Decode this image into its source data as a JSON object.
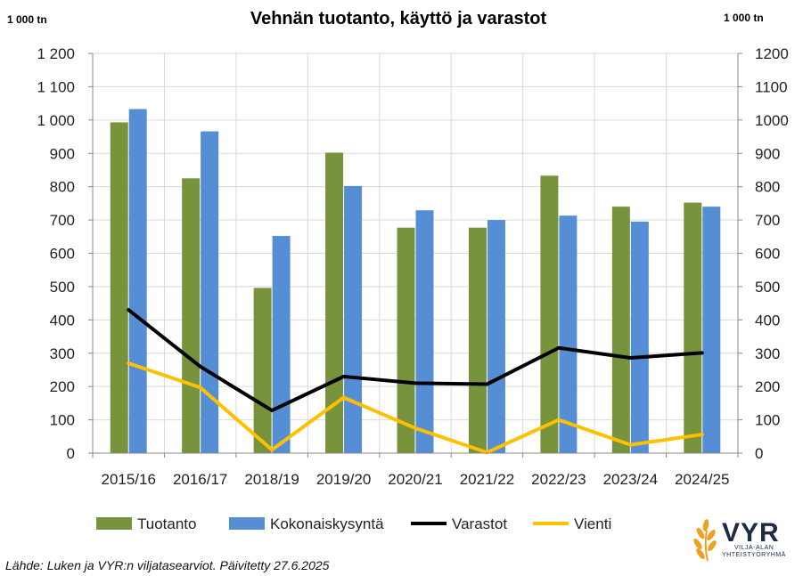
{
  "chart_data": {
    "type": "bar",
    "title": "Vehnän tuotanto, käyttö ja varastot",
    "y_unit_left": "1 000 tn",
    "y_unit_right": "1 000 tn",
    "categories": [
      "2015/16",
      "2016/17",
      "2018/19",
      "2019/20",
      "2020/21",
      "2021/22",
      "2022/23",
      "2023/24",
      "2024/25"
    ],
    "ylim": [
      0,
      1200
    ],
    "yticks_left": [
      "0",
      "100",
      "200",
      "300",
      "400",
      "500",
      "600",
      "700",
      "800",
      "900",
      "1 000",
      "1 100",
      "1 200"
    ],
    "yticks_right": [
      "0",
      "100",
      "200",
      "300",
      "400",
      "500",
      "600",
      "700",
      "800",
      "900",
      "1000",
      "1100",
      "1200"
    ],
    "grid": true,
    "legend_position": "bottom",
    "series": [
      {
        "name": "Tuotanto",
        "kind": "bar",
        "color": "#77933c",
        "values": [
          993,
          825,
          496,
          902,
          677,
          677,
          833,
          740,
          752
        ]
      },
      {
        "name": "Kokonaiskysyntä",
        "kind": "bar",
        "color": "#558ed5",
        "values": [
          1033,
          966,
          652,
          802,
          729,
          700,
          713,
          695,
          740
        ]
      },
      {
        "name": "Varastot",
        "kind": "line",
        "color": "#000000",
        "values": [
          430,
          260,
          128,
          230,
          210,
          207,
          316,
          286,
          301
        ]
      },
      {
        "name": "Vienti",
        "kind": "line",
        "color": "#ffc000",
        "values": [
          270,
          197,
          10,
          167,
          75,
          2,
          100,
          25,
          56
        ]
      }
    ]
  },
  "source_text": "Lähde: Luken ja VYR:n viljatasearviot. Päivitetty 27.6.2025",
  "logo": {
    "name": "VYR",
    "subtitle_line1": "VILJA-ALAN",
    "subtitle_line2": "YHTEISTYÖRYHMÄ",
    "color": "#1c2b46",
    "accent": "#f0a020"
  }
}
